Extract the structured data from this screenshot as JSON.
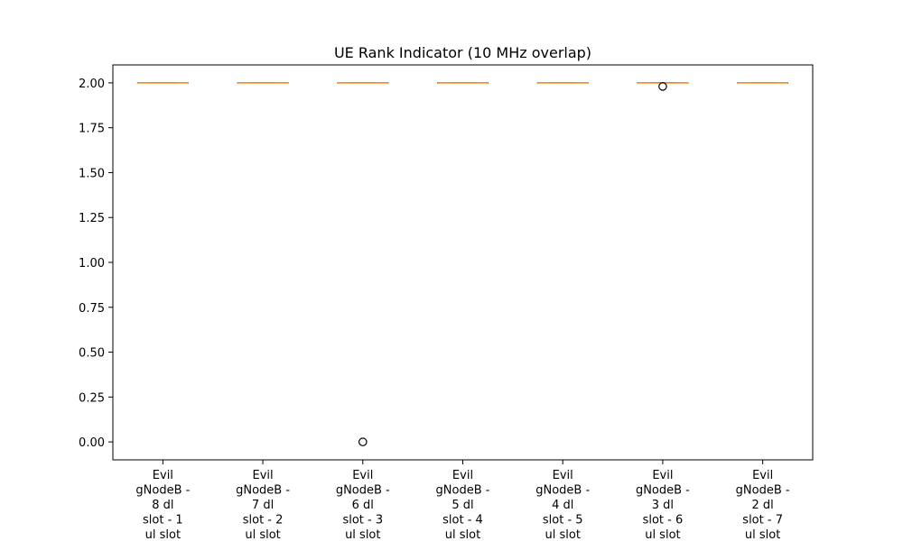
{
  "chart_data": {
    "type": "box",
    "title": "UE Rank Indicator (10 MHz overlap)",
    "xlabel": "",
    "ylabel": "",
    "ylim": [
      -0.1,
      2.1
    ],
    "yticks": [
      0.0,
      0.25,
      0.5,
      0.75,
      1.0,
      1.25,
      1.5,
      1.75,
      2.0
    ],
    "ytick_labels": [
      "0.00",
      "0.25",
      "0.50",
      "0.75",
      "1.00",
      "1.25",
      "1.50",
      "1.75",
      "2.00"
    ],
    "grid": false,
    "categories": [
      [
        "Evil",
        "gNodeB -",
        "8 dl",
        "slot - 1",
        "ul slot"
      ],
      [
        "Evil",
        "gNodeB -",
        "7 dl",
        "slot - 2",
        "ul slot"
      ],
      [
        "Evil",
        "gNodeB -",
        "6 dl",
        "slot - 3",
        "ul slot"
      ],
      [
        "Evil",
        "gNodeB -",
        "5 dl",
        "slot - 4",
        "ul slot"
      ],
      [
        "Evil",
        "gNodeB -",
        "4 dl",
        "slot - 5",
        "ul slot"
      ],
      [
        "Evil",
        "gNodeB -",
        "3 dl",
        "slot - 6",
        "ul slot"
      ],
      [
        "Evil",
        "gNodeB -",
        "2 dl",
        "slot - 7",
        "ul slot"
      ]
    ],
    "boxes": [
      {
        "min": 2.0,
        "q1": 2.0,
        "median": 2.0,
        "q3": 2.0,
        "max": 2.0,
        "outliers": []
      },
      {
        "min": 2.0,
        "q1": 2.0,
        "median": 2.0,
        "q3": 2.0,
        "max": 2.0,
        "outliers": []
      },
      {
        "min": 2.0,
        "q1": 2.0,
        "median": 2.0,
        "q3": 2.0,
        "max": 2.0,
        "outliers": [
          0.0
        ]
      },
      {
        "min": 2.0,
        "q1": 2.0,
        "median": 2.0,
        "q3": 2.0,
        "max": 2.0,
        "outliers": []
      },
      {
        "min": 2.0,
        "q1": 2.0,
        "median": 2.0,
        "q3": 2.0,
        "max": 2.0,
        "outliers": []
      },
      {
        "min": 2.0,
        "q1": 2.0,
        "median": 2.0,
        "q3": 2.0,
        "max": 2.0,
        "outliers": [
          1.98
        ]
      },
      {
        "min": 2.0,
        "q1": 2.0,
        "median": 2.0,
        "q3": 2.0,
        "max": 2.0,
        "outliers": []
      }
    ],
    "colors": {
      "box": "#000000",
      "median": "#ff7f0e",
      "flier": "#000000",
      "axes": "#000000"
    }
  }
}
